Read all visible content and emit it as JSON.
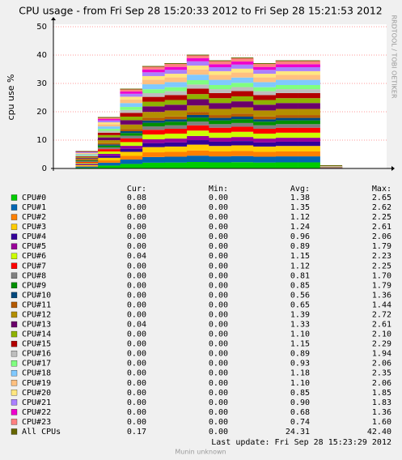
{
  "chart_data": {
    "type": "area",
    "stacked": true,
    "title": "CPU usage - from Fri Sep 28 15:20:33 2012 to Fri Sep 28 15:21:53 2012",
    "y_label": "cpu use %",
    "watermark": "RRDTOOL / TOBI OETIKER",
    "ylim": [
      0,
      50
    ],
    "yticks": [
      0,
      10,
      20,
      30,
      40,
      50
    ],
    "grid": true,
    "categories": [
      null,
      null,
      null,
      null,
      null,
      null,
      null,
      null,
      null,
      null,
      null,
      null,
      null,
      null,
      null
    ],
    "series": [
      {
        "name": "CPU#0",
        "color": "#00cc00",
        "values": [
          0,
          0.34,
          1.02,
          1.59,
          2.04,
          2.1,
          2.28,
          2.15,
          2.21,
          2.1,
          2.15,
          2.15,
          0.06,
          0,
          0
        ]
      },
      {
        "name": "CPU#1",
        "color": "#0066b3",
        "values": [
          0,
          0.33,
          1.0,
          1.55,
          2.0,
          2.05,
          2.23,
          2.11,
          2.16,
          2.05,
          2.11,
          2.11,
          0.05,
          0,
          0
        ]
      },
      {
        "name": "CPU#2",
        "color": "#ff8000",
        "values": [
          0,
          0.28,
          0.83,
          1.29,
          1.66,
          1.7,
          1.85,
          1.75,
          1.79,
          1.7,
          1.75,
          1.75,
          0.04,
          0,
          0
        ]
      },
      {
        "name": "CPU#3",
        "color": "#ffcc00",
        "values": [
          0,
          0.31,
          0.92,
          1.43,
          1.84,
          1.88,
          2.05,
          1.93,
          1.98,
          1.88,
          1.93,
          1.93,
          0.05,
          0,
          0
        ]
      },
      {
        "name": "CPU#4",
        "color": "#330099",
        "values": [
          0,
          0.24,
          0.71,
          1.1,
          1.42,
          1.46,
          1.58,
          1.5,
          1.54,
          1.46,
          1.5,
          1.5,
          0.04,
          0,
          0
        ]
      },
      {
        "name": "CPU#5",
        "color": "#990099",
        "values": [
          0,
          0.22,
          0.66,
          1.02,
          1.32,
          1.35,
          1.47,
          1.39,
          1.42,
          1.35,
          1.39,
          1.39,
          0.04,
          0,
          0
        ]
      },
      {
        "name": "CPU#6",
        "color": "#ccff00",
        "values": [
          0,
          0.29,
          0.85,
          1.32,
          1.7,
          1.75,
          1.9,
          1.79,
          1.84,
          1.75,
          1.79,
          1.79,
          0.05,
          0,
          0
        ]
      },
      {
        "name": "CPU#7",
        "color": "#ff0000",
        "values": [
          0,
          0.28,
          0.83,
          1.29,
          1.66,
          1.7,
          1.85,
          1.75,
          1.79,
          1.7,
          1.75,
          1.75,
          0.04,
          0,
          0
        ]
      },
      {
        "name": "CPU#8",
        "color": "#808080",
        "values": [
          0,
          0.2,
          0.6,
          0.93,
          1.2,
          1.23,
          1.34,
          1.26,
          1.3,
          1.23,
          1.26,
          1.26,
          0.03,
          0,
          0
        ]
      },
      {
        "name": "CPU#9",
        "color": "#008f00",
        "values": [
          0,
          0.21,
          0.63,
          0.98,
          1.26,
          1.29,
          1.4,
          1.33,
          1.36,
          1.29,
          1.33,
          1.33,
          0.03,
          0,
          0
        ]
      },
      {
        "name": "CPU#10",
        "color": "#00487d",
        "values": [
          0,
          0.14,
          0.41,
          0.64,
          0.83,
          0.85,
          0.92,
          0.87,
          0.9,
          0.85,
          0.87,
          0.87,
          0.02,
          0,
          0
        ]
      },
      {
        "name": "CPU#11",
        "color": "#b35a00",
        "values": [
          0,
          0.16,
          0.48,
          0.75,
          0.96,
          0.99,
          1.07,
          1.01,
          1.04,
          0.99,
          1.01,
          1.01,
          0.03,
          0,
          0
        ]
      },
      {
        "name": "CPU#12",
        "color": "#b38f00",
        "values": [
          0,
          0.35,
          1.03,
          1.6,
          2.06,
          2.11,
          2.29,
          2.17,
          2.22,
          2.11,
          2.17,
          2.17,
          0.06,
          0,
          0
        ]
      },
      {
        "name": "CPU#13",
        "color": "#6b006b",
        "values": [
          0,
          0.33,
          0.98,
          1.53,
          1.97,
          2.02,
          2.19,
          2.07,
          2.13,
          2.02,
          2.07,
          2.07,
          0.05,
          0,
          0
        ]
      },
      {
        "name": "CPU#14",
        "color": "#8fb300",
        "values": [
          0,
          0.28,
          0.81,
          1.27,
          1.63,
          1.67,
          1.82,
          1.72,
          1.76,
          1.67,
          1.72,
          1.72,
          0.04,
          0,
          0
        ]
      },
      {
        "name": "CPU#15",
        "color": "#b30000",
        "values": [
          0,
          0.29,
          0.85,
          1.32,
          1.7,
          1.75,
          1.9,
          1.79,
          1.84,
          1.75,
          1.79,
          1.79,
          0.05,
          0,
          0
        ]
      },
      {
        "name": "CPU#16",
        "color": "#bebebe",
        "values": [
          0,
          0.22,
          0.66,
          1.02,
          1.32,
          1.35,
          1.47,
          1.39,
          1.42,
          1.35,
          1.39,
          1.39,
          0.04,
          0,
          0
        ]
      },
      {
        "name": "CPU#17",
        "color": "#80ff80",
        "values": [
          0,
          0.23,
          0.69,
          1.07,
          1.38,
          1.41,
          1.53,
          1.45,
          1.49,
          1.41,
          1.45,
          1.45,
          0.04,
          0,
          0
        ]
      },
      {
        "name": "CPU#18",
        "color": "#80c9ff",
        "values": [
          0,
          0.3,
          0.87,
          1.36,
          1.75,
          1.79,
          1.95,
          1.84,
          1.89,
          1.79,
          1.84,
          1.84,
          0.05,
          0,
          0
        ]
      },
      {
        "name": "CPU#19",
        "color": "#ffc080",
        "values": [
          0,
          0.28,
          0.81,
          1.27,
          1.63,
          1.67,
          1.82,
          1.72,
          1.76,
          1.67,
          1.72,
          1.72,
          0.04,
          0,
          0
        ]
      },
      {
        "name": "CPU#20",
        "color": "#ffe680",
        "values": [
          0,
          0.21,
          0.63,
          0.98,
          1.26,
          1.29,
          1.4,
          1.33,
          1.36,
          1.29,
          1.33,
          1.33,
          0.03,
          0,
          0
        ]
      },
      {
        "name": "CPU#21",
        "color": "#aa80ff",
        "values": [
          0,
          0.23,
          0.67,
          1.04,
          1.33,
          1.37,
          1.49,
          1.4,
          1.44,
          1.37,
          1.4,
          1.4,
          0.04,
          0,
          0
        ]
      },
      {
        "name": "CPU#22",
        "color": "#ee00cc",
        "values": [
          0,
          0.17,
          0.5,
          0.78,
          1.01,
          1.03,
          1.12,
          1.06,
          1.09,
          1.03,
          1.06,
          1.06,
          0.03,
          0,
          0
        ]
      },
      {
        "name": "CPU#23",
        "color": "#ff8080",
        "values": [
          0,
          0.19,
          0.55,
          0.85,
          1.1,
          1.12,
          1.22,
          1.15,
          1.18,
          1.12,
          1.15,
          1.15,
          0.03,
          0,
          0
        ]
      },
      {
        "name": "All CPUs",
        "color": "#666600",
        "stack": false,
        "values": [
          0,
          6,
          18,
          28,
          36,
          37,
          40,
          38,
          39,
          37,
          38,
          38,
          1,
          0,
          0
        ]
      }
    ]
  },
  "legend_table": {
    "headers": [
      "Cur:",
      "Min:",
      "Avg:",
      "Max:"
    ],
    "rows": [
      [
        "0.08",
        "0.00",
        "1.38",
        "2.65"
      ],
      [
        "0.00",
        "0.00",
        "1.35",
        "2.62"
      ],
      [
        "0.00",
        "0.00",
        "1.12",
        "2.25"
      ],
      [
        "0.00",
        "0.00",
        "1.24",
        "2.61"
      ],
      [
        "0.00",
        "0.00",
        "0.96",
        "2.06"
      ],
      [
        "0.00",
        "0.00",
        "0.89",
        "1.79"
      ],
      [
        "0.04",
        "0.00",
        "1.15",
        "2.23"
      ],
      [
        "0.00",
        "0.00",
        "1.12",
        "2.25"
      ],
      [
        "0.00",
        "0.00",
        "0.81",
        "1.70"
      ],
      [
        "0.00",
        "0.00",
        "0.85",
        "1.79"
      ],
      [
        "0.00",
        "0.00",
        "0.56",
        "1.36"
      ],
      [
        "0.00",
        "0.00",
        "0.65",
        "1.44"
      ],
      [
        "0.00",
        "0.00",
        "1.39",
        "2.72"
      ],
      [
        "0.04",
        "0.00",
        "1.33",
        "2.61"
      ],
      [
        "0.00",
        "0.00",
        "1.10",
        "2.10"
      ],
      [
        "0.00",
        "0.00",
        "1.15",
        "2.29"
      ],
      [
        "0.00",
        "0.00",
        "0.89",
        "1.94"
      ],
      [
        "0.00",
        "0.00",
        "0.93",
        "2.06"
      ],
      [
        "0.00",
        "0.00",
        "1.18",
        "2.35"
      ],
      [
        "0.00",
        "0.00",
        "1.10",
        "2.06"
      ],
      [
        "0.00",
        "0.00",
        "0.85",
        "1.85"
      ],
      [
        "0.00",
        "0.00",
        "0.90",
        "1.83"
      ],
      [
        "0.00",
        "0.00",
        "0.68",
        "1.36"
      ],
      [
        "0.00",
        "0.00",
        "0.74",
        "1.60"
      ],
      [
        "0.17",
        "0.00",
        "24.31",
        "42.40"
      ]
    ]
  },
  "footer": {
    "last_update": "Last update:  Fri Sep 28 15:23:29 2012",
    "source": "Munin unknown"
  }
}
